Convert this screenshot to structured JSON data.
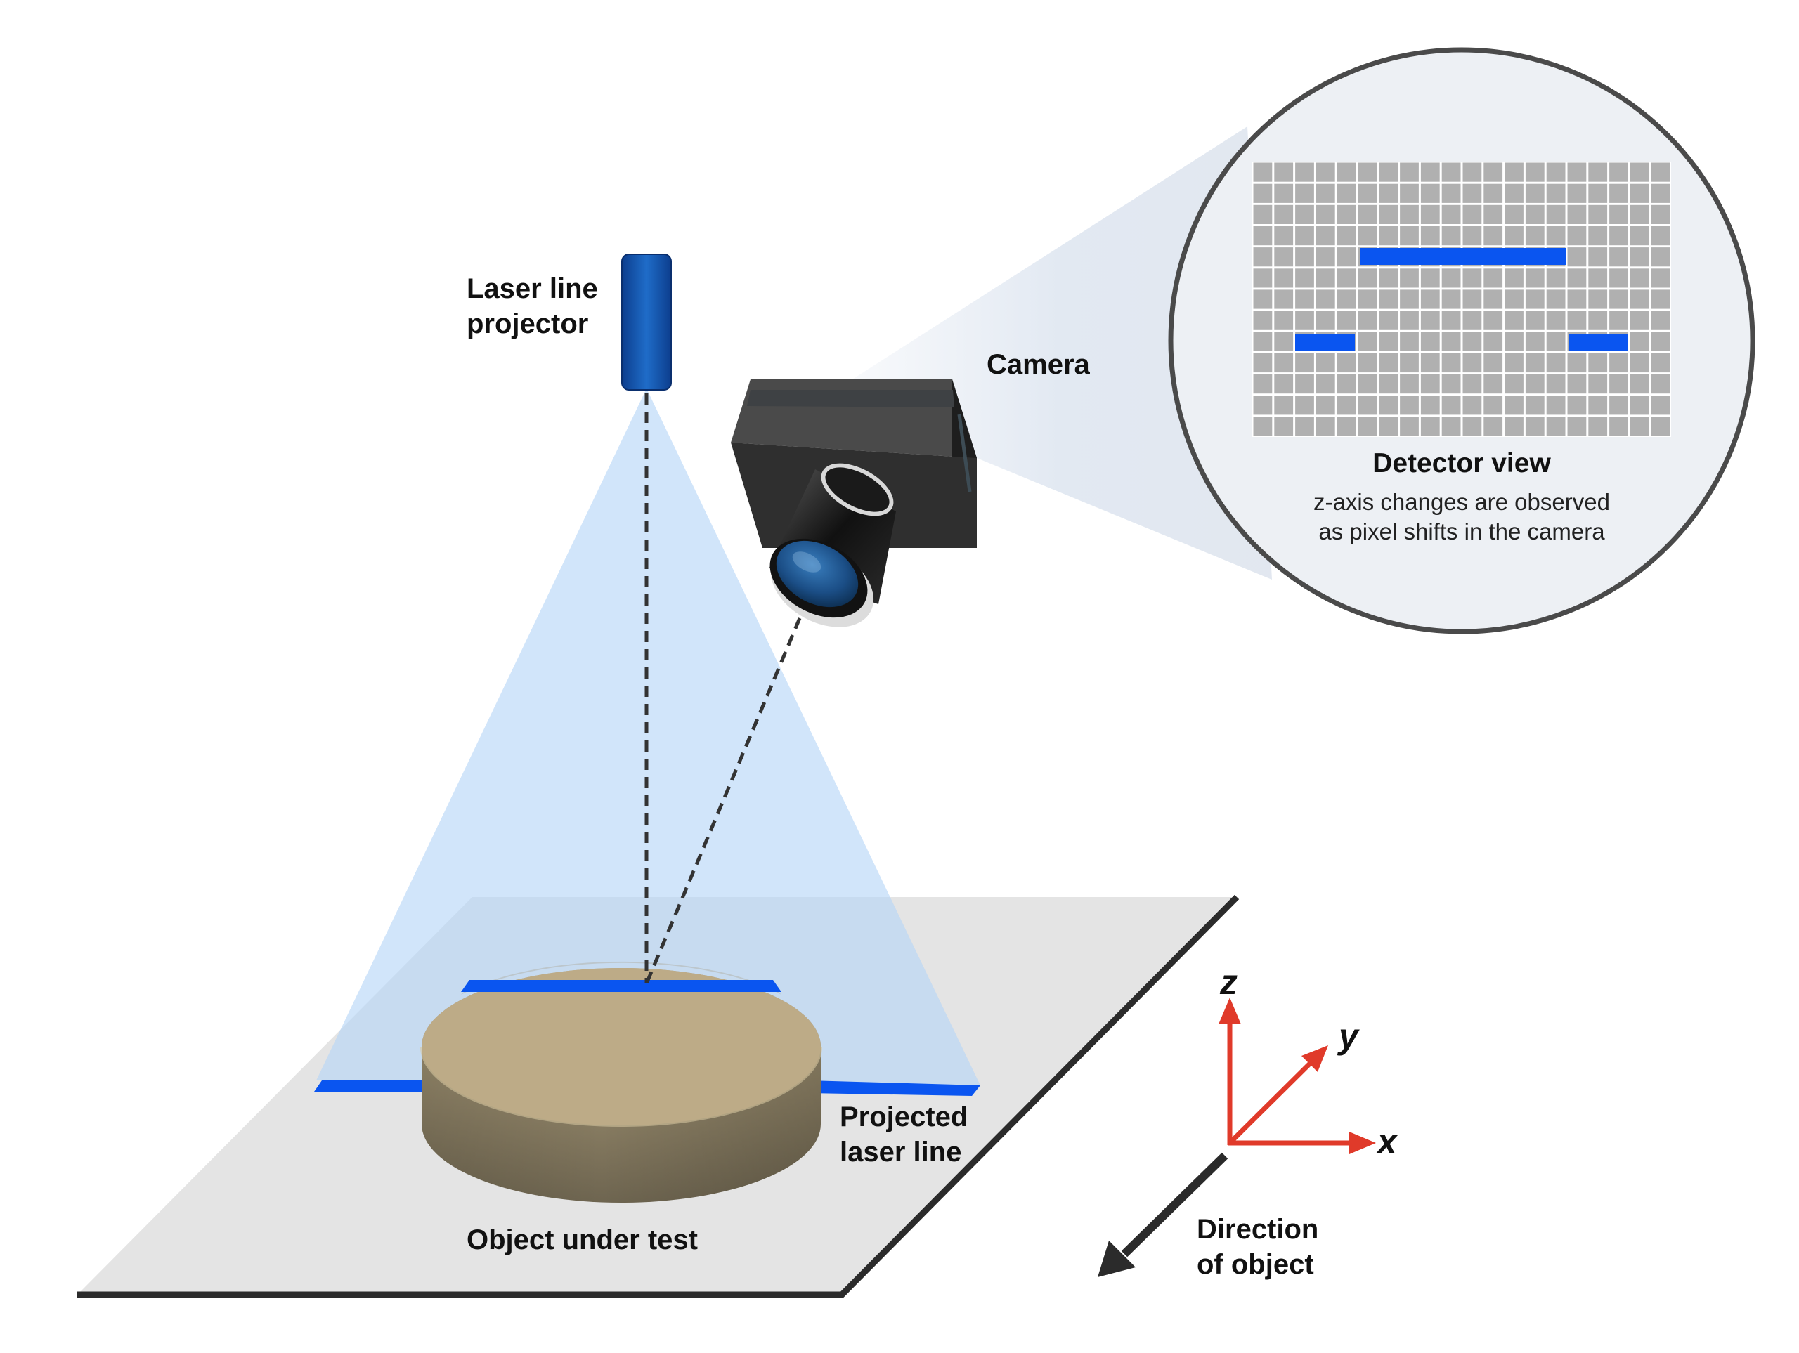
{
  "labels": {
    "laser_projector": [
      "Laser line",
      "projector"
    ],
    "camera": "Camera",
    "projected_line": [
      "Projected",
      "laser line"
    ],
    "object": "Object under test",
    "direction": [
      "Direction",
      "of object"
    ]
  },
  "detector": {
    "title": "Detector view",
    "caption": [
      "z-axis changes are observed",
      "as pixel shifts in the camera"
    ]
  },
  "axes": {
    "z": "z",
    "y": "y",
    "x": "x"
  },
  "colors": {
    "laser_blue": "#0a55f0",
    "beam_fill": "#c6dffa",
    "platform": "#e4e4e4",
    "object": "#bdab87",
    "camera_body": "#2f2f2f",
    "axis_red": "#e03a2a",
    "pixel_gray": "#b0b0b0",
    "detector_bg": "#edf0f4"
  }
}
